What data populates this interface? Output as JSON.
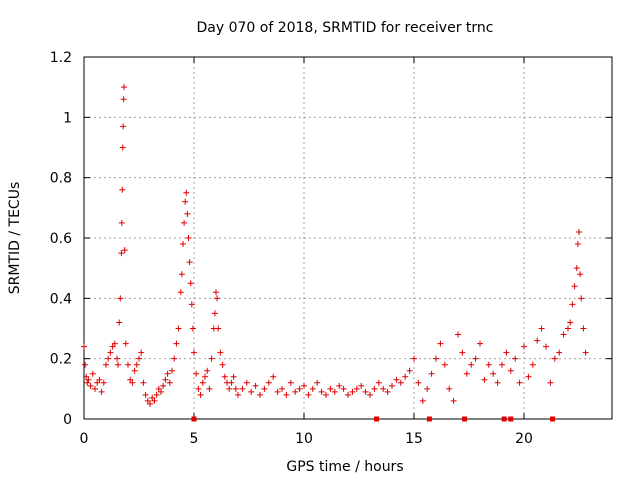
{
  "chart_data": {
    "type": "scatter",
    "title": "Day 070 of 2018, SRMTID for receiver trnc",
    "xlabel": "GPS time / hours",
    "ylabel": "SRMTID / TECUs",
    "xlim": [
      0,
      24
    ],
    "ylim": [
      0,
      1.2
    ],
    "x_ticks": [
      0,
      5,
      10,
      15,
      20
    ],
    "x_tick_labels": [
      "0",
      "5",
      "10",
      "15",
      "20"
    ],
    "y_ticks": [
      0,
      0.2,
      0.4,
      0.6,
      0.8,
      1.0,
      1.2
    ],
    "y_tick_labels": [
      "0",
      "0.2",
      "0.4",
      "0.6",
      "0.8",
      "1",
      "1.2"
    ],
    "grid": true,
    "marker": "plus",
    "color": "#e00000",
    "series": [
      {
        "name": "SRMTID",
        "x": [
          0.0,
          0.05,
          0.1,
          0.15,
          0.2,
          0.3,
          0.4,
          0.5,
          0.6,
          0.7,
          0.8,
          0.9,
          1.0,
          1.1,
          1.2,
          1.3,
          1.4,
          1.5,
          1.55,
          1.6,
          1.65,
          1.7,
          1.72,
          1.74,
          1.76,
          1.78,
          1.8,
          1.82,
          1.85,
          1.9,
          2.0,
          2.1,
          2.2,
          2.3,
          2.4,
          2.5,
          2.6,
          2.7,
          2.8,
          2.9,
          3.0,
          3.1,
          3.2,
          3.3,
          3.4,
          3.5,
          3.6,
          3.7,
          3.8,
          3.9,
          4.0,
          4.1,
          4.2,
          4.3,
          4.4,
          4.45,
          4.5,
          4.55,
          4.6,
          4.65,
          4.7,
          4.75,
          4.8,
          4.85,
          4.9,
          4.95,
          5.0,
          5.1,
          5.2,
          5.3,
          5.4,
          5.5,
          5.6,
          5.7,
          5.8,
          5.9,
          5.95,
          6.0,
          6.05,
          6.1,
          6.2,
          6.3,
          6.4,
          6.5,
          6.6,
          6.7,
          6.8,
          6.9,
          7.0,
          7.2,
          7.4,
          7.6,
          7.8,
          8.0,
          8.2,
          8.4,
          8.6,
          8.8,
          9.0,
          9.2,
          9.4,
          9.6,
          9.8,
          10.0,
          10.2,
          10.4,
          10.6,
          10.8,
          11.0,
          11.2,
          11.4,
          11.6,
          11.8,
          12.0,
          12.2,
          12.4,
          12.6,
          12.8,
          13.0,
          13.2,
          13.4,
          13.6,
          13.8,
          14.0,
          14.2,
          14.4,
          14.6,
          14.8,
          15.0,
          15.2,
          15.4,
          15.6,
          15.8,
          16.0,
          16.2,
          16.4,
          16.6,
          16.8,
          17.0,
          17.2,
          17.4,
          17.6,
          17.8,
          18.0,
          18.2,
          18.4,
          18.6,
          18.8,
          19.0,
          19.2,
          19.4,
          19.6,
          19.8,
          20.0,
          20.2,
          20.4,
          20.6,
          20.8,
          21.0,
          21.2,
          21.4,
          21.6,
          21.8,
          22.0,
          22.1,
          22.2,
          22.3,
          22.4,
          22.45,
          22.5,
          22.55,
          22.6,
          22.7,
          22.8
        ],
        "y": [
          0.24,
          0.18,
          0.14,
          0.12,
          0.13,
          0.11,
          0.15,
          0.1,
          0.12,
          0.13,
          0.09,
          0.12,
          0.18,
          0.2,
          0.22,
          0.24,
          0.25,
          0.2,
          0.18,
          0.32,
          0.4,
          0.55,
          0.65,
          0.76,
          0.9,
          0.97,
          1.06,
          1.1,
          0.56,
          0.25,
          0.18,
          0.13,
          0.12,
          0.16,
          0.18,
          0.2,
          0.22,
          0.12,
          0.08,
          0.06,
          0.05,
          0.07,
          0.06,
          0.08,
          0.1,
          0.09,
          0.11,
          0.13,
          0.15,
          0.12,
          0.16,
          0.2,
          0.25,
          0.3,
          0.42,
          0.48,
          0.58,
          0.65,
          0.72,
          0.75,
          0.68,
          0.6,
          0.52,
          0.45,
          0.38,
          0.3,
          0.22,
          0.15,
          0.1,
          0.08,
          0.12,
          0.14,
          0.16,
          0.1,
          0.2,
          0.3,
          0.35,
          0.42,
          0.4,
          0.3,
          0.22,
          0.18,
          0.14,
          0.12,
          0.1,
          0.12,
          0.14,
          0.1,
          0.08,
          0.1,
          0.12,
          0.09,
          0.11,
          0.08,
          0.1,
          0.12,
          0.14,
          0.09,
          0.1,
          0.08,
          0.12,
          0.09,
          0.1,
          0.11,
          0.08,
          0.1,
          0.12,
          0.09,
          0.08,
          0.1,
          0.09,
          0.11,
          0.1,
          0.08,
          0.09,
          0.1,
          0.11,
          0.09,
          0.08,
          0.1,
          0.12,
          0.1,
          0.09,
          0.11,
          0.13,
          0.12,
          0.14,
          0.16,
          0.2,
          0.12,
          0.06,
          0.1,
          0.15,
          0.2,
          0.25,
          0.18,
          0.1,
          0.06,
          0.28,
          0.22,
          0.15,
          0.18,
          0.2,
          0.25,
          0.13,
          0.18,
          0.15,
          0.12,
          0.18,
          0.22,
          0.16,
          0.2,
          0.12,
          0.24,
          0.14,
          0.18,
          0.26,
          0.3,
          0.24,
          0.12,
          0.2,
          0.22,
          0.28,
          0.3,
          0.32,
          0.38,
          0.44,
          0.5,
          0.58,
          0.62,
          0.48,
          0.4,
          0.3,
          0.22
        ]
      }
    ],
    "gap_markers_x": [
      5.0,
      13.3,
      15.7,
      17.3,
      19.1,
      19.4,
      21.3
    ]
  }
}
